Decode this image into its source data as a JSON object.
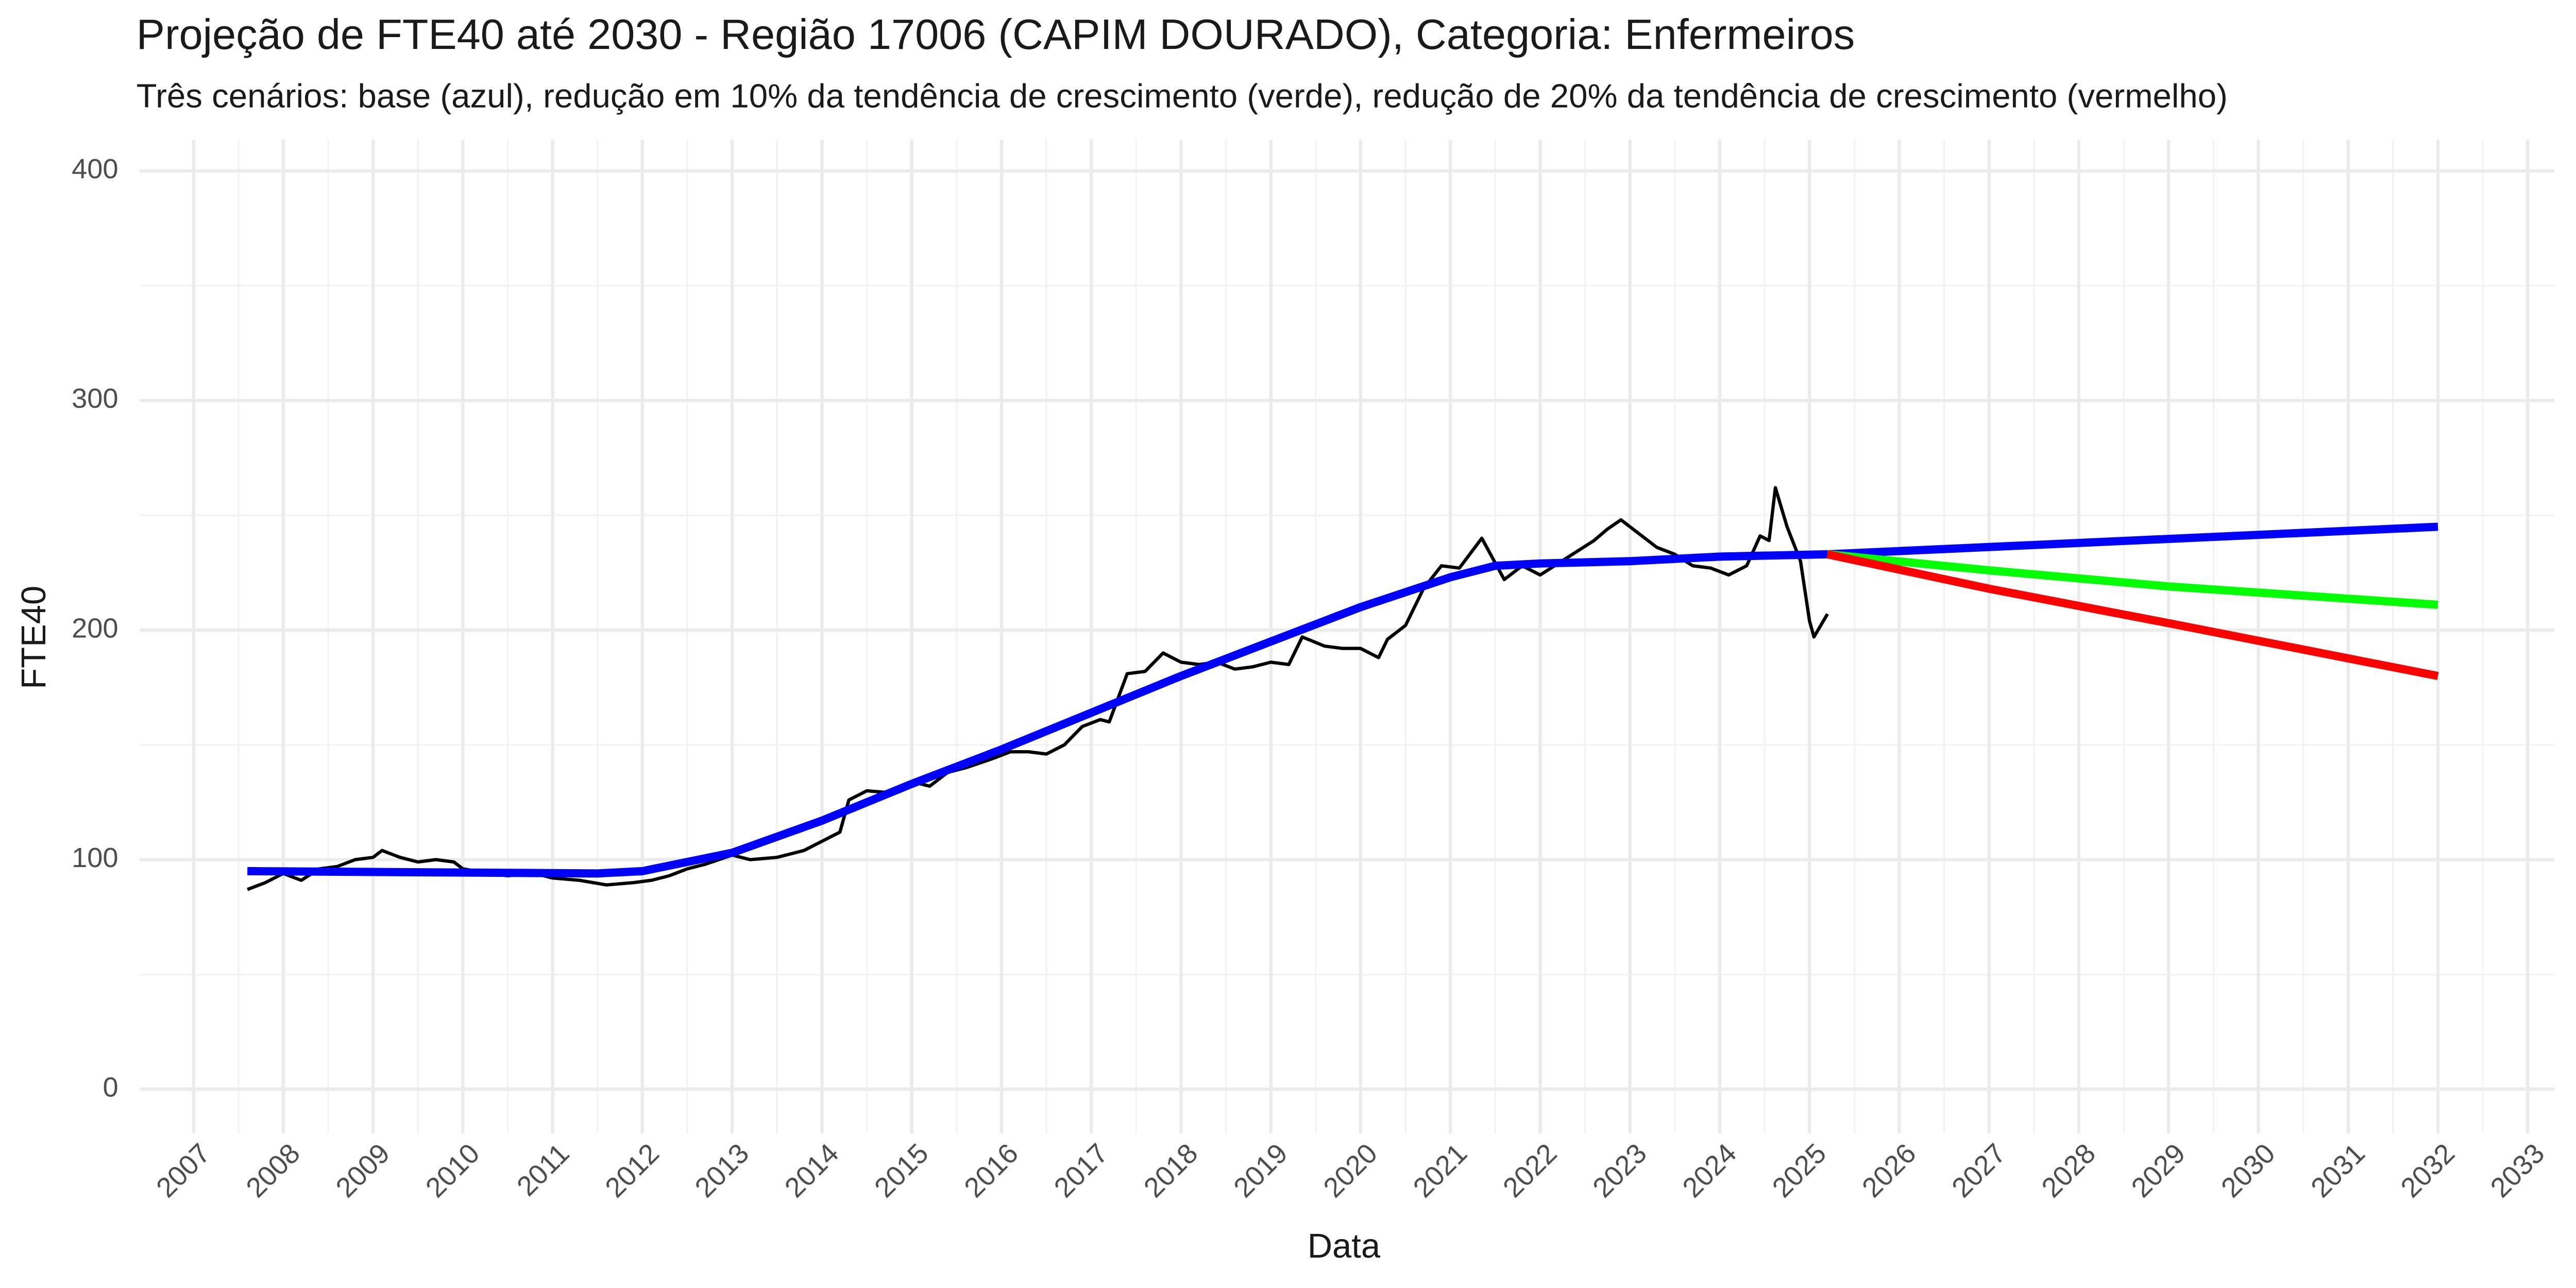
{
  "chart_data": {
    "type": "line",
    "title": "Projeção de FTE40 até 2030 - Região 17006 (CAPIM DOURADO), Categoria: Enfermeiros",
    "subtitle": "Três cenários: base (azul), redução em 10% da tendência de crescimento (verde), redução de 20% da tendência de crescimento (vermelho)",
    "x_label": "Data",
    "y_label": "FTE40",
    "xlim": [
      2006.4,
      2033.3
    ],
    "ylim": [
      -19.3,
      413.6
    ],
    "xticks": [
      2007,
      2008,
      2009,
      2010,
      2011,
      2012,
      2013,
      2014,
      2015,
      2016,
      2017,
      2018,
      2019,
      2020,
      2021,
      2022,
      2023,
      2024,
      2025,
      2026,
      2027,
      2028,
      2029,
      2030,
      2031,
      2032,
      2033
    ],
    "yticks": [
      0,
      100,
      200,
      300,
      400
    ],
    "grid": true,
    "series": [
      {
        "color": "#000000",
        "x": [
          2007.6,
          2007.8,
          2008.0,
          2008.2,
          2008.4,
          2008.6,
          2008.8,
          2009.0,
          2009.1,
          2009.3,
          2009.5,
          2009.7,
          2009.9,
          2010.0,
          2010.3,
          2010.5,
          2010.8,
          2011.0,
          2011.3,
          2011.6,
          2011.9,
          2012.1,
          2012.3,
          2012.5,
          2012.7,
          2013.0,
          2013.2,
          2013.5,
          2013.8,
          2014.0,
          2014.2,
          2014.3,
          2014.5,
          2014.8,
          2015.0,
          2015.2,
          2015.4,
          2015.6,
          2015.9,
          2016.1,
          2016.3,
          2016.5,
          2016.7,
          2016.9,
          2017.1,
          2017.2,
          2017.4,
          2017.6,
          2017.8,
          2018.0,
          2018.2,
          2018.4,
          2018.6,
          2018.8,
          2019.0,
          2019.2,
          2019.35,
          2019.6,
          2019.8,
          2020.0,
          2020.2,
          2020.3,
          2020.5,
          2020.7,
          2020.9,
          2021.1,
          2021.35,
          2021.6,
          2021.8,
          2022.0,
          2022.2,
          2022.4,
          2022.6,
          2022.75,
          2022.9,
          2023.1,
          2023.3,
          2023.5,
          2023.7,
          2023.9,
          2024.1,
          2024.3,
          2024.45,
          2024.55,
          2024.62,
          2024.75,
          2024.9,
          2025.0,
          2025.05,
          2025.2
        ],
        "values": [
          87,
          90,
          94,
          91,
          96,
          97,
          100,
          101,
          104,
          101,
          99,
          100,
          99,
          96,
          94,
          93,
          94,
          92,
          91,
          89,
          90,
          91,
          93,
          96,
          98,
          102,
          100,
          101,
          104,
          108,
          112,
          126,
          130,
          129,
          134,
          132,
          138,
          140,
          144,
          147,
          147,
          146,
          150,
          158,
          161,
          160,
          181,
          182,
          190,
          186,
          185,
          186,
          183,
          184,
          186,
          185,
          197,
          193,
          192,
          192,
          188,
          196,
          202,
          218,
          228,
          227,
          240,
          222,
          228,
          224,
          229,
          234,
          239,
          244,
          248,
          242,
          236,
          233,
          228,
          227,
          224,
          228,
          241,
          239,
          262,
          245,
          230,
          204,
          197,
          207
        ]
      },
      {
        "color": "#0000ff",
        "x": [
          2007.6,
          2011.5,
          2012.0,
          2013.0,
          2014.0,
          2015.0,
          2016.0,
          2017.0,
          2018.0,
          2019.0,
          2020.0,
          2021.0,
          2021.5,
          2022.0,
          2023.0,
          2024.0,
          2025.2,
          2032.0
        ],
        "values": [
          95,
          94,
          95,
          103,
          117,
          133,
          148,
          164,
          180,
          195,
          210,
          223,
          228,
          229,
          230,
          232,
          233,
          245
        ]
      },
      {
        "color": "#00ff00",
        "x": [
          2025.2,
          2027.0,
          2029.0,
          2032.0
        ],
        "values": [
          233,
          226,
          219,
          211
        ]
      },
      {
        "color": "#ff0000",
        "x": [
          2025.2,
          2027.0,
          2029.0,
          2032.0
        ],
        "values": [
          233,
          218,
          203,
          180
        ]
      }
    ]
  }
}
